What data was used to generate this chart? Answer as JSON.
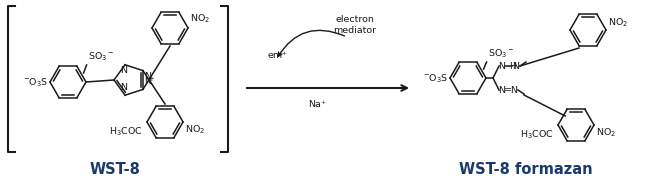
{
  "bg_color": "#ffffff",
  "figsize": [
    6.48,
    1.86
  ],
  "dpi": 100,
  "wst8_label": "WST-8",
  "formazan_label": "WST-8 formazan",
  "em_label": "em⁺",
  "electron_mediator_label": "electron\nmediator",
  "na_label": "Na⁺",
  "lw": 1.1,
  "fs": 6.8,
  "fs_label": 10.5,
  "r_hex": 18,
  "bracket_color": "#444444",
  "line_color": "#1a1a1a",
  "label_color": "#1a3a6e"
}
